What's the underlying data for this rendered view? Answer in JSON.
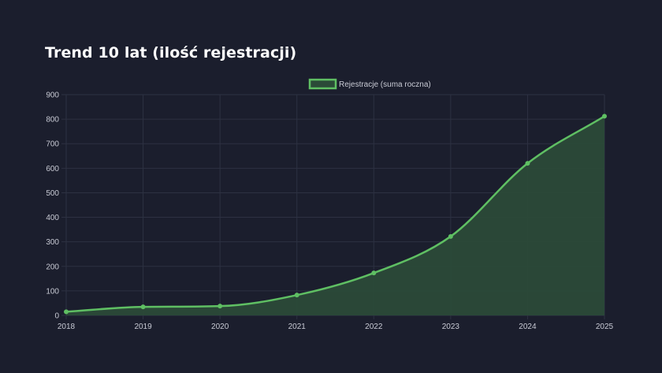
{
  "page": {
    "title": "Trend 10 lat (ilość rejestracji)"
  },
  "colors": {
    "background": "#1b1e2d",
    "grid": "#2d3142",
    "line": "#5fbf63",
    "fill": "#2b4a38",
    "text": "#c8cad4"
  },
  "chart_data": {
    "type": "area",
    "title": "Trend 10 lat (ilość rejestracji)",
    "xlabel": "",
    "ylabel": "",
    "categories": [
      "2018",
      "2019",
      "2020",
      "2021",
      "2022",
      "2023",
      "2024",
      "2025"
    ],
    "series": [
      {
        "name": "Rejestracje (suma roczna)",
        "values": [
          15,
          35,
          38,
          83,
          173,
          322,
          620,
          812
        ]
      }
    ],
    "ylim": [
      0,
      900
    ],
    "yticks": [
      0,
      100,
      200,
      300,
      400,
      500,
      600,
      700,
      800,
      900
    ],
    "grid": true,
    "legend": "top-center",
    "smooth": true
  }
}
